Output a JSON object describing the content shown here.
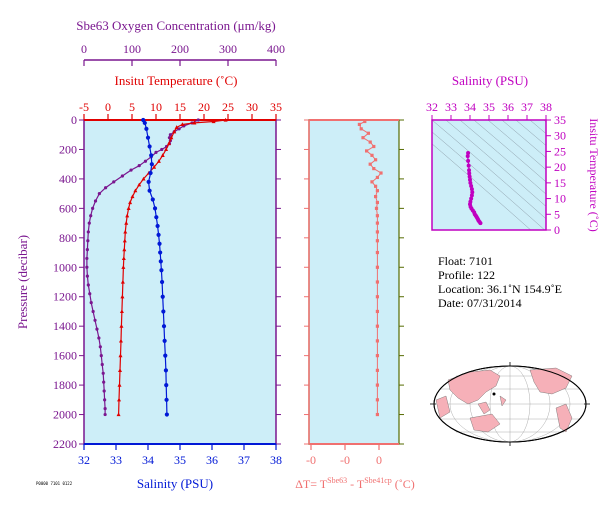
{
  "colors": {
    "background": "#cdeef8",
    "oxygen": "#7a168f",
    "temperature": "#e00000",
    "salinity": "#0018d6",
    "delta_t": "#f07070",
    "ts_panel": "#c000c0",
    "axis_dark": "#556b00"
  },
  "profile_chart": {
    "oxygen_axis": {
      "title": "Sbe63 Oxygen Concentration (μm/kg)",
      "ticks": [
        "0",
        "100",
        "200",
        "300",
        "400"
      ]
    },
    "temperature_axis": {
      "title": "Insitu Temperature (˚C)",
      "ticks": [
        "-5",
        "0",
        "5",
        "10",
        "15",
        "20",
        "25",
        "30",
        "35"
      ]
    },
    "pressure_axis": {
      "title": "Pressure (decibar)",
      "ticks": [
        "0",
        "200",
        "400",
        "600",
        "800",
        "1000",
        "1200",
        "1400",
        "1600",
        "1800",
        "2000",
        "2200"
      ]
    },
    "salinity_axis": {
      "title": "Salinity (PSU)",
      "ticks": [
        "32",
        "33",
        "34",
        "35",
        "36",
        "37",
        "38"
      ]
    }
  },
  "delta_chart": {
    "x_ticks": [
      "-0",
      "-0",
      "0"
    ],
    "xlabel_parts": {
      "prefix": "ΔT= T",
      "sup1": "Sbe63",
      "mid": " - T",
      "sup2": "Sbe41cp",
      "suffix": " (˚C)"
    }
  },
  "ts_chart": {
    "salinity_title": "Salinity (PSU)",
    "salinity_ticks": [
      "32",
      "33",
      "34",
      "35",
      "36",
      "37",
      "38"
    ],
    "temperature_title": "Insitu Temperature (˚C)",
    "temperature_ticks": [
      "0",
      "5",
      "10",
      "15",
      "20",
      "25",
      "30",
      "35"
    ]
  },
  "info": {
    "float": "Float:  7101",
    "profile": "Profile:  122",
    "location": "Location:  36.1˚N  154.9˚E",
    "date": "Date:  07/31/2014"
  },
  "footer_text": "P0000 7101 0122",
  "chart_data": [
    {
      "type": "line",
      "title": "",
      "ylabel": "Pressure (decibar)",
      "ylim": [
        2200,
        0
      ],
      "series": [
        {
          "name": "Sbe63 Oxygen Concentration (μm/kg)",
          "xlim": [
            0,
            400
          ],
          "points": [
            [
              238,
              0
            ],
            [
              225,
              20
            ],
            [
              208,
              40
            ],
            [
              198,
              60
            ],
            [
              188,
              80
            ],
            [
              180,
              100
            ],
            [
              178,
              120
            ],
            [
              180,
              140
            ],
            [
              178,
              160
            ],
            [
              172,
              180
            ],
            [
              162,
              200
            ],
            [
              150,
              220
            ],
            [
              140,
              250
            ],
            [
              128,
              280
            ],
            [
              115,
              310
            ],
            [
              98,
              340
            ],
            [
              80,
              380
            ],
            [
              62,
              420
            ],
            [
              45,
              460
            ],
            [
              32,
              500
            ],
            [
              24,
              550
            ],
            [
              18,
              600
            ],
            [
              14,
              650
            ],
            [
              11,
              700
            ],
            [
              9,
              760
            ],
            [
              8,
              820
            ],
            [
              7,
              880
            ],
            [
              6,
              940
            ],
            [
              6,
              1000
            ],
            [
              7,
              1060
            ],
            [
              9,
              1120
            ],
            [
              12,
              1180
            ],
            [
              15,
              1240
            ],
            [
              19,
              1300
            ],
            [
              23,
              1360
            ],
            [
              27,
              1420
            ],
            [
              31,
              1480
            ],
            [
              34,
              1540
            ],
            [
              36,
              1600
            ],
            [
              38,
              1660
            ],
            [
              40,
              1720
            ],
            [
              41,
              1780
            ],
            [
              42,
              1840
            ],
            [
              43,
              1900
            ],
            [
              44,
              1960
            ],
            [
              44,
              2000
            ]
          ]
        },
        {
          "name": "Insitu Temperature (˚C)",
          "xlim": [
            -5,
            35
          ],
          "points": [
            [
              24.5,
              0
            ],
            [
              22.0,
              10
            ],
            [
              18.0,
              20
            ],
            [
              15.5,
              30
            ],
            [
              14.3,
              50
            ],
            [
              13.8,
              80
            ],
            [
              13.2,
              120
            ],
            [
              12.7,
              160
            ],
            [
              12.1,
              200
            ],
            [
              11.4,
              240
            ],
            [
              10.6,
              280
            ],
            [
              9.6,
              320
            ],
            [
              8.5,
              360
            ],
            [
              7.4,
              400
            ],
            [
              6.5,
              440
            ],
            [
              5.7,
              480
            ],
            [
              5.1,
              520
            ],
            [
              4.6,
              560
            ],
            [
              4.3,
              600
            ],
            [
              4.0,
              650
            ],
            [
              3.8,
              700
            ],
            [
              3.6,
              760
            ],
            [
              3.5,
              820
            ],
            [
              3.4,
              880
            ],
            [
              3.3,
              940
            ],
            [
              3.2,
              1000
            ],
            [
              3.1,
              1100
            ],
            [
              3.0,
              1200
            ],
            [
              2.9,
              1300
            ],
            [
              2.8,
              1400
            ],
            [
              2.7,
              1500
            ],
            [
              2.6,
              1600
            ],
            [
              2.5,
              1700
            ],
            [
              2.4,
              1800
            ],
            [
              2.3,
              1900
            ],
            [
              2.2,
              2000
            ]
          ]
        },
        {
          "name": "Salinity (PSU)",
          "xlim": [
            32,
            38
          ],
          "points": [
            [
              33.85,
              0
            ],
            [
              33.9,
              20
            ],
            [
              33.95,
              60
            ],
            [
              34.0,
              120
            ],
            [
              34.05,
              180
            ],
            [
              34.1,
              240
            ],
            [
              34.12,
              300
            ],
            [
              34.08,
              360
            ],
            [
              34.02,
              420
            ],
            [
              34.05,
              480
            ],
            [
              34.15,
              540
            ],
            [
              34.22,
              600
            ],
            [
              34.26,
              660
            ],
            [
              34.3,
              720
            ],
            [
              34.33,
              780
            ],
            [
              34.36,
              840
            ],
            [
              34.38,
              900
            ],
            [
              34.4,
              960
            ],
            [
              34.42,
              1020
            ],
            [
              34.44,
              1100
            ],
            [
              34.46,
              1200
            ],
            [
              34.48,
              1300
            ],
            [
              34.5,
              1400
            ],
            [
              34.52,
              1500
            ],
            [
              34.54,
              1600
            ],
            [
              34.56,
              1700
            ],
            [
              34.57,
              1800
            ],
            [
              34.58,
              1900
            ],
            [
              34.59,
              2000
            ]
          ]
        }
      ]
    },
    {
      "type": "line",
      "title": "",
      "ylim": [
        2200,
        0
      ],
      "series": [
        {
          "name": "ΔT",
          "x_norm": "fraction of axis width",
          "points": [
            [
              0.62,
              10
            ],
            [
              0.56,
              30
            ],
            [
              0.58,
              60
            ],
            [
              0.66,
              90
            ],
            [
              0.6,
              120
            ],
            [
              0.68,
              150
            ],
            [
              0.72,
              180
            ],
            [
              0.64,
              210
            ],
            [
              0.7,
              240
            ],
            [
              0.74,
              270
            ],
            [
              0.68,
              300
            ],
            [
              0.72,
              330
            ],
            [
              0.8,
              360
            ],
            [
              0.76,
              390
            ],
            [
              0.7,
              420
            ],
            [
              0.74,
              450
            ],
            [
              0.76,
              480
            ],
            [
              0.74,
              520
            ],
            [
              0.76,
              560
            ],
            [
              0.75,
              600
            ],
            [
              0.76,
              650
            ],
            [
              0.76,
              700
            ],
            [
              0.76,
              760
            ],
            [
              0.76,
              820
            ],
            [
              0.76,
              900
            ],
            [
              0.76,
              1000
            ],
            [
              0.76,
              1100
            ],
            [
              0.76,
              1200
            ],
            [
              0.76,
              1300
            ],
            [
              0.76,
              1400
            ],
            [
              0.76,
              1500
            ],
            [
              0.76,
              1600
            ],
            [
              0.76,
              1700
            ],
            [
              0.76,
              1800
            ],
            [
              0.76,
              1900
            ],
            [
              0.76,
              2000
            ]
          ]
        }
      ]
    },
    {
      "type": "scatter",
      "title": "",
      "xlabel": "Salinity (PSU)",
      "ylabel": "Insitu Temperature (˚C)",
      "xlim": [
        32,
        38
      ],
      "ylim": [
        0,
        35
      ],
      "series": [
        {
          "name": "T-S",
          "points": [
            [
              34.55,
              2.2
            ],
            [
              34.5,
              2.6
            ],
            [
              34.45,
              3.0
            ],
            [
              34.42,
              3.4
            ],
            [
              34.38,
              3.8
            ],
            [
              34.34,
              4.2
            ],
            [
              34.3,
              4.6
            ],
            [
              34.25,
              5.0
            ],
            [
              34.22,
              5.6
            ],
            [
              34.15,
              6.2
            ],
            [
              34.08,
              6.8
            ],
            [
              34.03,
              7.4
            ],
            [
              34.0,
              8.2
            ],
            [
              34.02,
              9.0
            ],
            [
              34.06,
              10.0
            ],
            [
              34.1,
              11.0
            ],
            [
              34.12,
              12.0
            ],
            [
              34.1,
              13.0
            ],
            [
              34.06,
              14.0
            ],
            [
              34.02,
              15.0
            ],
            [
              34.0,
              16.0
            ],
            [
              33.98,
              17.0
            ],
            [
              33.96,
              18.0
            ],
            [
              33.95,
              19.0
            ],
            [
              33.93,
              20.5
            ],
            [
              33.9,
              22.0
            ],
            [
              33.88,
              23.5
            ],
            [
              33.9,
              24.5
            ]
          ]
        }
      ]
    }
  ]
}
